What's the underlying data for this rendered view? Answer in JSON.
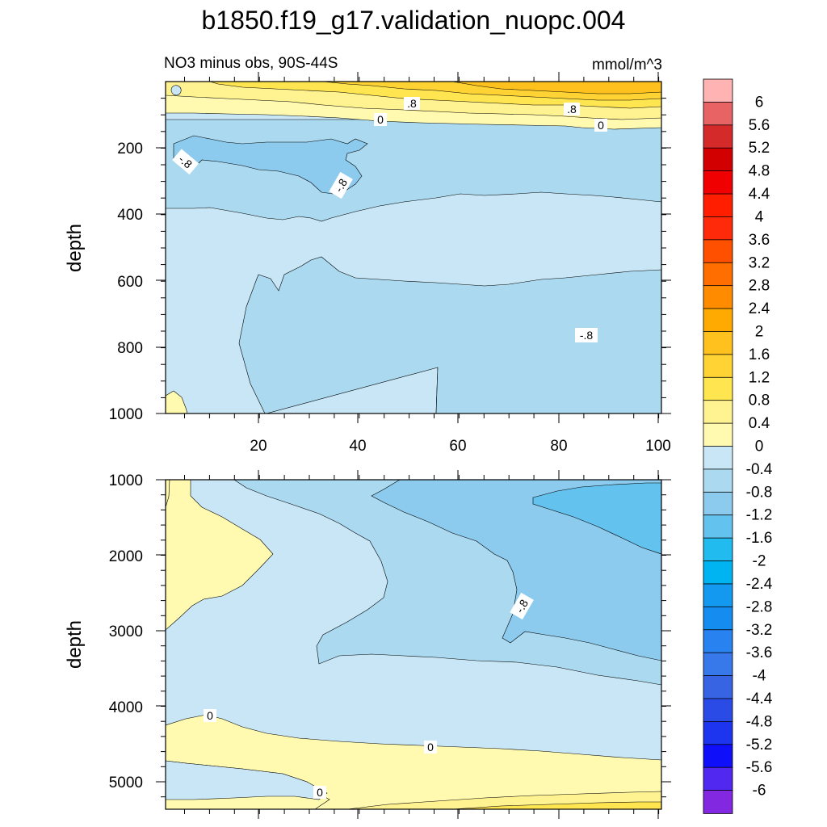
{
  "chart_data": {
    "type": "contour",
    "title": "b1850.f19_g17.validation_nuopc.004",
    "subtitle_left": "NO3 minus obs, 90S-44S",
    "subtitle_right": "mmol/m^3",
    "panels": [
      {
        "name": "upper",
        "ylabel": "depth",
        "xlim": [
          1,
          101
        ],
        "ylim": [
          0,
          1000
        ],
        "y_inverted": true,
        "xticks": [
          "20",
          "40",
          "60",
          "80",
          "100"
        ],
        "yticks": [
          "200",
          "400",
          "600",
          "800",
          "1000"
        ],
        "contour_labels": [
          ".8",
          ".8",
          "0",
          "0",
          "-.8",
          "-.8",
          "-.8"
        ]
      },
      {
        "name": "lower",
        "ylabel": "depth",
        "xlim": [
          1,
          101
        ],
        "ylim": [
          1000,
          5350
        ],
        "y_inverted": true,
        "xticks": [],
        "yticks": [
          "1000",
          "2000",
          "3000",
          "4000",
          "5000"
        ],
        "contour_labels": [
          "-.8",
          "0",
          "0",
          "0"
        ]
      }
    ],
    "colorbar": {
      "labels": [
        "6",
        "5.6",
        "5.2",
        "4.8",
        "4.4",
        "4",
        "3.6",
        "3.2",
        "2.8",
        "2.4",
        "2",
        "1.6",
        "1.2",
        "0.8",
        "0.4",
        "0",
        "-0.4",
        "-0.8",
        "-1.2",
        "-1.6",
        "-2",
        "-2.4",
        "-2.8",
        "-3.2",
        "-3.6",
        "-4",
        "-4.4",
        "-4.8",
        "-5.2",
        "-5.6",
        "-6"
      ],
      "colors": [
        "#FFB3B3",
        "#E86464",
        "#D42A2A",
        "#D20000",
        "#F00000",
        "#FF1E00",
        "#FF2A0A",
        "#FF5000",
        "#FF6E00",
        "#FF8C00",
        "#FFAA00",
        "#FFC11E",
        "#FFD334",
        "#FFE54F",
        "#FFF291",
        "#FFFAB0",
        "#C8E6F5",
        "#ABDAF0",
        "#8CCAEE",
        "#64C3EE",
        "#22BBF0",
        "#00B4F2",
        "#1499F0",
        "#148CF0",
        "#2882F0",
        "#3778EB",
        "#3664E2",
        "#2A4BE6",
        "#1E35F0",
        "#0F0FFA",
        "#5028F0",
        "#8228E1"
      ]
    }
  }
}
